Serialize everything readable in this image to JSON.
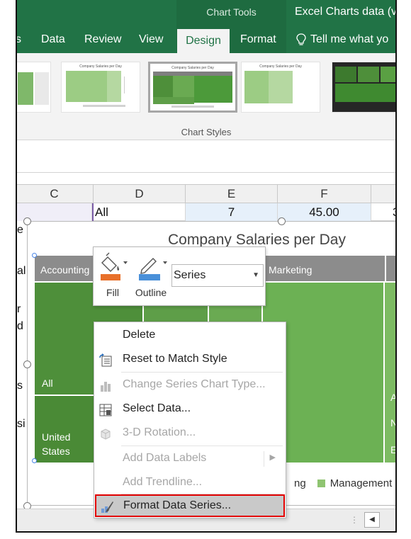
{
  "ribbon": {
    "context_group": "Chart Tools",
    "doc_title": "Excel Charts data (v",
    "tabs": [
      "s",
      "Data",
      "Review",
      "View",
      "Design",
      "Format"
    ],
    "tell_me": "Tell me what yo",
    "chart_styles_label": "Chart Styles",
    "thumbnail_title": "Company Salaries per Day"
  },
  "sheet": {
    "columns": [
      "C",
      "D",
      "E",
      "F"
    ],
    "row1": {
      "c": "",
      "d": "All",
      "e": "7",
      "f": "45.00",
      "g": "3"
    },
    "left_fragments": [
      "e",
      "al",
      "r",
      "d",
      "s",
      "si"
    ]
  },
  "chart": {
    "title": "Company Salaries per Day",
    "labels": {
      "accounting": "Accounting",
      "marketing": "Marketing",
      "all": "All",
      "united_states": "United States",
      "right_a": "A",
      "right_n": "N",
      "right_e": "E"
    },
    "legend_partial": "ng",
    "legend_management": "Management",
    "colors": {
      "dark": "#4e8f3a",
      "mid": "#6aaa52",
      "light": "#8fc471",
      "header": "#8c8c8c"
    }
  },
  "mini_toolbar": {
    "fill_label": "Fill",
    "outline_label": "Outline",
    "series_value": "Series"
  },
  "context_menu": {
    "items": [
      {
        "label": "Delete",
        "enabled": true
      },
      {
        "label": "Reset to Match Style",
        "enabled": true
      },
      {
        "label": "Change Series Chart Type...",
        "enabled": false
      },
      {
        "label": "Select Data...",
        "enabled": true
      },
      {
        "label": "3-D Rotation...",
        "enabled": false
      },
      {
        "label": "Add Data Labels",
        "enabled": false
      },
      {
        "label": "Add Trendline...",
        "enabled": false
      },
      {
        "label": "Format Data Series...",
        "enabled": true
      }
    ]
  }
}
